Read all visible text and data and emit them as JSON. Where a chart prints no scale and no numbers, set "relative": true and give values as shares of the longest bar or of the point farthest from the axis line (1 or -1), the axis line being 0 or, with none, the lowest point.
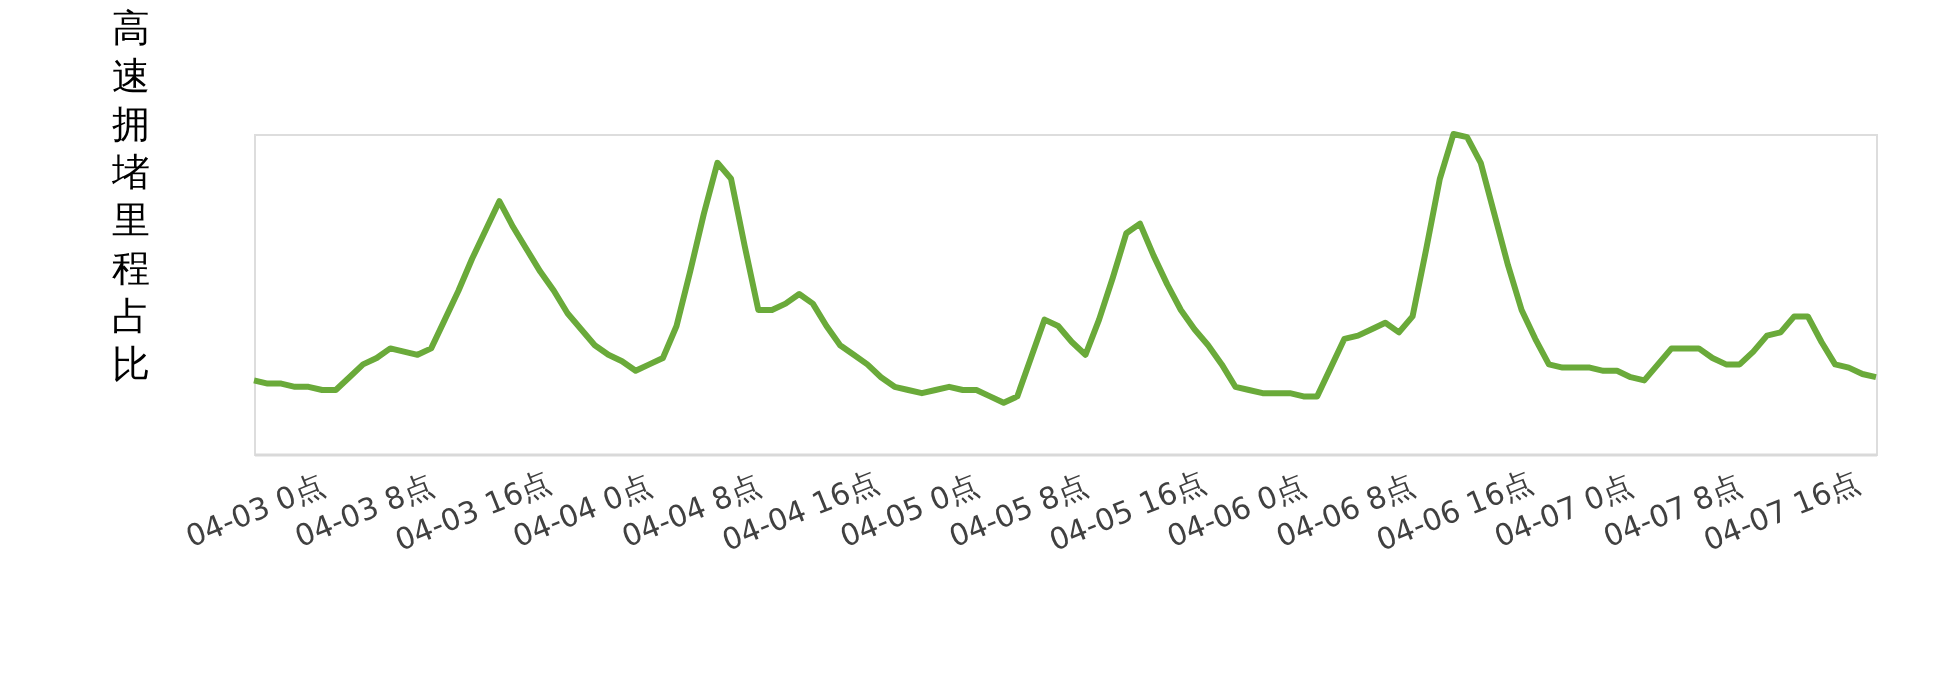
{
  "chart_data": {
    "type": "line",
    "ylabel": "高速拥堵里程占比",
    "relative": true,
    "grid": false,
    "legend": false,
    "marker": "none",
    "line_style": "solid",
    "categories": [
      "04-03 0点",
      null,
      null,
      null,
      null,
      null,
      null,
      null,
      "04-03 8点",
      null,
      null,
      null,
      null,
      null,
      null,
      null,
      "04-03 16点",
      null,
      null,
      null,
      null,
      null,
      null,
      null,
      "04-04 0点",
      null,
      null,
      null,
      null,
      null,
      null,
      null,
      "04-04 8点",
      null,
      null,
      null,
      null,
      null,
      null,
      null,
      "04-04 16点",
      null,
      null,
      null,
      null,
      null,
      null,
      null,
      "04-05 0点",
      null,
      null,
      null,
      null,
      null,
      null,
      null,
      "04-05 8点",
      null,
      null,
      null,
      null,
      null,
      null,
      null,
      "04-05 16点",
      null,
      null,
      null,
      null,
      null,
      null,
      null,
      "04-06 0点",
      null,
      null,
      null,
      null,
      null,
      null,
      null,
      "04-06 8点",
      null,
      null,
      null,
      null,
      null,
      null,
      null,
      "04-06 16点",
      null,
      null,
      null,
      null,
      null,
      null,
      null,
      "04-07 0点",
      null,
      null,
      null,
      null,
      null,
      null,
      null,
      "04-07 8点",
      null,
      null,
      null,
      null,
      null,
      null,
      null,
      "04-07 16点",
      null,
      null,
      null,
      null,
      null,
      null,
      null
    ],
    "series": [
      {
        "color": "#6aaa3a",
        "values": [
          0.23,
          0.22,
          0.22,
          0.21,
          0.21,
          0.2,
          0.2,
          0.24,
          0.28,
          0.3,
          0.33,
          0.32,
          0.31,
          0.33,
          0.42,
          0.51,
          0.61,
          0.7,
          0.79,
          0.71,
          0.64,
          0.57,
          0.51,
          0.44,
          0.39,
          0.34,
          0.31,
          0.29,
          0.26,
          0.28,
          0.3,
          0.4,
          0.57,
          0.75,
          0.91,
          0.86,
          0.65,
          0.45,
          0.45,
          0.47,
          0.5,
          0.47,
          0.4,
          0.34,
          0.31,
          0.28,
          0.24,
          0.21,
          0.2,
          0.19,
          0.2,
          0.21,
          0.2,
          0.2,
          0.18,
          0.16,
          0.18,
          0.3,
          0.42,
          0.4,
          0.35,
          0.31,
          0.42,
          0.55,
          0.69,
          0.72,
          0.62,
          0.53,
          0.45,
          0.39,
          0.34,
          0.28,
          0.21,
          0.2,
          0.19,
          0.19,
          0.19,
          0.18,
          0.18,
          0.27,
          0.36,
          0.37,
          0.39,
          0.41,
          0.38,
          0.43,
          0.64,
          0.86,
          1.0,
          0.99,
          0.91,
          0.75,
          0.59,
          0.45,
          0.36,
          0.28,
          0.27,
          0.27,
          0.27,
          0.26,
          0.26,
          0.24,
          0.23,
          0.28,
          0.33,
          0.33,
          0.33,
          0.3,
          0.28,
          0.28,
          0.32,
          0.37,
          0.38,
          0.43,
          0.43,
          0.35,
          0.28,
          0.27,
          0.25,
          0.24
        ]
      }
    ]
  }
}
